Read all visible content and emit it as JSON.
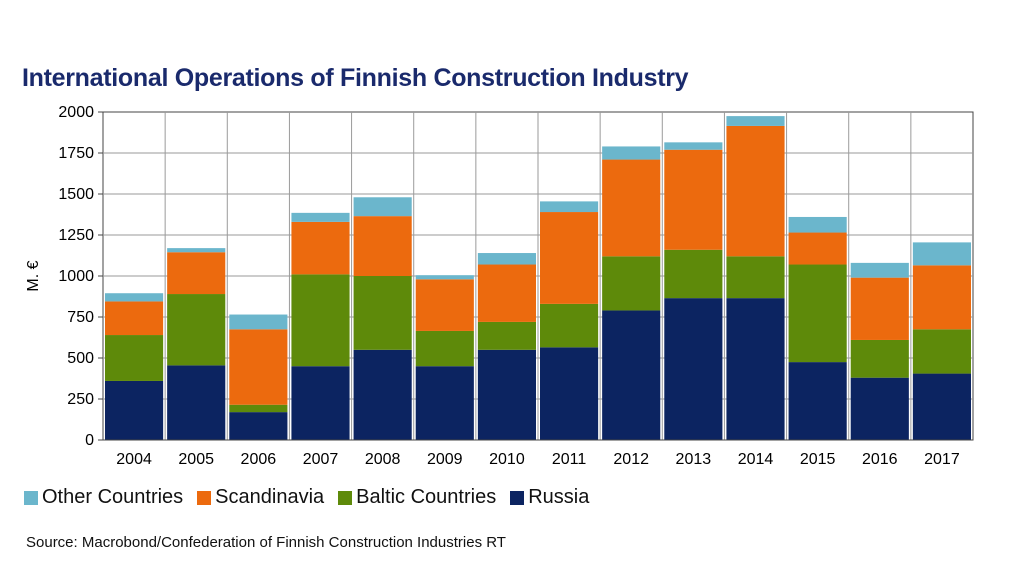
{
  "title": "International Operations of Finnish Construction Industry",
  "source": "Source: Macrobond/Confederation of Finnish Construction Industries RT",
  "colors": {
    "Russia": "#0c2461",
    "Baltic Countries": "#5e8a0a",
    "Scandinavia": "#ec6a0e",
    "Other Countries": "#6bb6cc"
  },
  "legend": [
    "Other Countries",
    "Scandinavia",
    "Baltic Countries",
    "Russia"
  ],
  "chart_data": {
    "type": "bar",
    "stacked": true,
    "title": "International Operations of Finnish Construction Industry",
    "xlabel": "",
    "ylabel": "M. €",
    "ylim": [
      0,
      2000
    ],
    "yticks": [
      0,
      250,
      500,
      750,
      1000,
      1250,
      1500,
      1750,
      2000
    ],
    "grid": true,
    "legend_position": "bottom",
    "categories": [
      "2004",
      "2005",
      "2006",
      "2007",
      "2008",
      "2009",
      "2010",
      "2011",
      "2012",
      "2013",
      "2014",
      "2015",
      "2016",
      "2017"
    ],
    "series": [
      {
        "name": "Russia",
        "values": [
          360,
          455,
          170,
          450,
          550,
          450,
          550,
          565,
          790,
          865,
          865,
          475,
          380,
          405
        ]
      },
      {
        "name": "Baltic Countries",
        "values": [
          280,
          435,
          45,
          560,
          450,
          215,
          170,
          265,
          330,
          295,
          255,
          595,
          230,
          270
        ]
      },
      {
        "name": "Scandinavia",
        "values": [
          205,
          255,
          460,
          320,
          365,
          315,
          350,
          560,
          590,
          610,
          795,
          195,
          380,
          390
        ]
      },
      {
        "name": "Other Countries",
        "values": [
          50,
          25,
          90,
          55,
          115,
          25,
          70,
          65,
          80,
          45,
          60,
          95,
          90,
          140
        ]
      }
    ]
  }
}
